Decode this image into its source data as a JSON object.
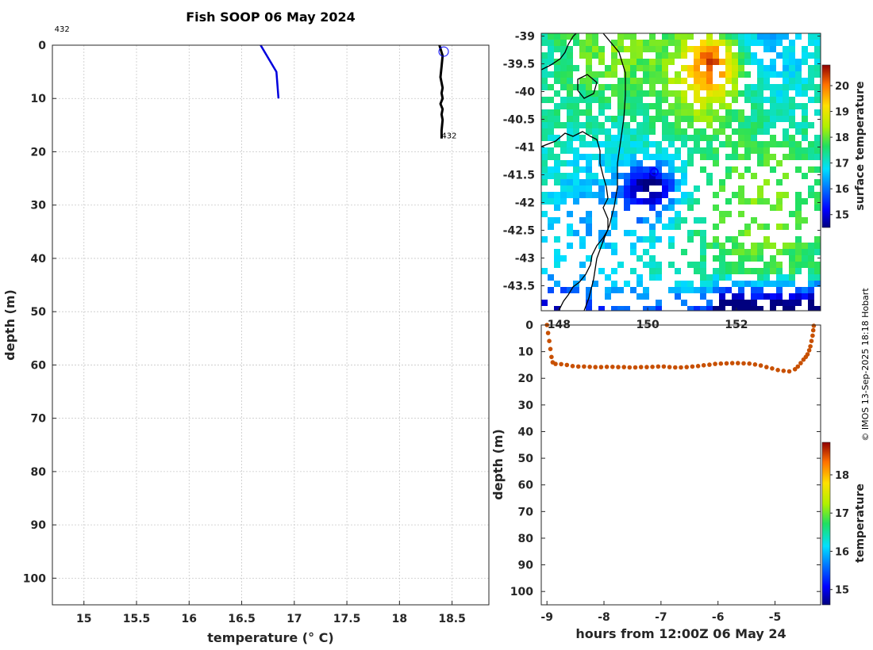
{
  "title": "Fish SOOP 06 May 2024",
  "credit": "© IMOS 13-Sep-2025 18:18 Hobart",
  "colors": {
    "profile_blue": "#0000dd",
    "profile_black": "#000000",
    "track": "#c85000",
    "marker": "#0000ff"
  },
  "chart_data": [
    {
      "type": "line",
      "name": "profile",
      "title": "Fish SOOP 06 May 2024",
      "xlabel": "temperature (° C)",
      "ylabel": "depth (m)",
      "xlim": [
        14.7,
        18.85
      ],
      "ylim": [
        105,
        0
      ],
      "xticks": [
        15,
        15.5,
        16,
        16.5,
        17,
        17.5,
        18,
        18.5
      ],
      "xtick_labels": [
        "15",
        "15.5",
        "16",
        "16.5",
        "17",
        "17.5",
        "18",
        "18.5"
      ],
      "yticks": [
        0,
        10,
        20,
        30,
        40,
        50,
        60,
        70,
        80,
        90,
        100
      ],
      "ytick_labels": [
        "0",
        "10",
        "20",
        "30",
        "40",
        "50",
        "60",
        "70",
        "80",
        "90",
        "100"
      ],
      "grid": true,
      "series": [
        {
          "color": "#0000dd",
          "x": [
            16.68,
            16.83,
            16.85
          ],
          "y": [
            0,
            5,
            10
          ]
        },
        {
          "color": "#000000",
          "x": [
            18.38,
            18.41,
            18.4,
            18.39,
            18.41,
            18.4,
            18.41,
            18.39,
            18.41,
            18.4,
            18.41,
            18.4,
            18.4
          ],
          "y": [
            0,
            2,
            4,
            6,
            8,
            9,
            10,
            11,
            12,
            13,
            14,
            16,
            17.5
          ]
        }
      ],
      "marker": {
        "x": 18.42,
        "y": 1.2
      },
      "annotations": [
        {
          "text": "432",
          "x": 14.72,
          "y": -2.5
        },
        {
          "text": "432",
          "x": 18.4,
          "y": 17.5
        }
      ]
    },
    {
      "type": "heatmap",
      "name": "surface-temperature-map",
      "colorbar_label": "surface temperature",
      "colorbar_range": [
        14.5,
        20.8
      ],
      "colorbar_ticks": [
        "15",
        "16",
        "17",
        "18",
        "19",
        "20"
      ],
      "colorbar_values": [
        15,
        16,
        17,
        18,
        19,
        20
      ],
      "lon_range": [
        147.6,
        153.9
      ],
      "lat_range": [
        -43.95,
        -38.95
      ],
      "yticks": [
        -39,
        -39.5,
        -40,
        -40.5,
        -41,
        -41.5,
        -42,
        -42.5,
        -43,
        -43.5
      ],
      "ytick_labels": [
        "-39",
        "-39.5",
        "-40",
        "-40.5",
        "-41",
        "-41.5",
        "-42",
        "-42.5",
        "-43",
        "-43.5"
      ],
      "xticks": [
        148,
        150,
        152
      ],
      "xtick_labels": [
        "148",
        "150",
        "152"
      ],
      "marker": {
        "lon": 150.15,
        "lat": -41.45
      }
    },
    {
      "type": "scatter",
      "name": "track-depth",
      "xlabel": "hours from 12:00Z 06 May 24",
      "ylabel": "depth (m)",
      "xlim": [
        -9.1,
        -4.2
      ],
      "ylim": [
        105,
        0
      ],
      "xticks": [
        -9,
        -8,
        -7,
        -6,
        -5
      ],
      "xtick_labels": [
        "-9",
        "-8",
        "-7",
        "-6",
        "-5"
      ],
      "yticks": [
        0,
        10,
        20,
        30,
        40,
        50,
        60,
        70,
        80,
        90,
        100
      ],
      "ytick_labels": [
        "0",
        "10",
        "20",
        "30",
        "40",
        "50",
        "60",
        "70",
        "80",
        "90",
        "100"
      ],
      "colorbar_label": "temperature",
      "colorbar_range": [
        14.6,
        18.85
      ],
      "colorbar_ticks": [
        "15",
        "16",
        "17",
        "18"
      ],
      "colorbar_values": [
        15,
        16,
        17,
        18
      ],
      "x": [
        -9.0,
        -8.98,
        -8.96,
        -8.94,
        -8.92,
        -8.9,
        -8.85,
        -8.75,
        -8.65,
        -8.55,
        -8.45,
        -8.35,
        -8.25,
        -8.15,
        -8.05,
        -7.95,
        -7.85,
        -7.75,
        -7.65,
        -7.55,
        -7.45,
        -7.35,
        -7.25,
        -7.15,
        -7.05,
        -6.95,
        -6.85,
        -6.75,
        -6.65,
        -6.55,
        -6.45,
        -6.35,
        -6.25,
        -6.15,
        -6.05,
        -5.95,
        -5.85,
        -5.75,
        -5.65,
        -5.55,
        -5.45,
        -5.35,
        -5.25,
        -5.15,
        -5.05,
        -4.95,
        -4.85,
        -4.75,
        -4.65,
        -4.6,
        -4.55,
        -4.5,
        -4.46,
        -4.43,
        -4.4,
        -4.38,
        -4.36,
        -4.34,
        -4.33,
        -4.32
      ],
      "y": [
        0,
        3,
        6,
        9,
        12,
        14,
        14.6,
        14.7,
        15.0,
        15.4,
        15.6,
        15.6,
        15.7,
        15.8,
        15.8,
        15.7,
        15.7,
        15.8,
        15.8,
        15.9,
        15.9,
        15.8,
        15.8,
        15.7,
        15.6,
        15.6,
        15.8,
        15.9,
        15.9,
        15.8,
        15.6,
        15.4,
        15.1,
        14.9,
        14.6,
        14.5,
        14.4,
        14.3,
        14.3,
        14.4,
        14.5,
        14.8,
        15.2,
        15.8,
        16.3,
        16.9,
        17.2,
        17.4,
        16.6,
        15.6,
        14.3,
        13.0,
        12.0,
        11.0,
        9.5,
        8.0,
        6.0,
        4.0,
        2.0,
        0.3
      ]
    }
  ]
}
